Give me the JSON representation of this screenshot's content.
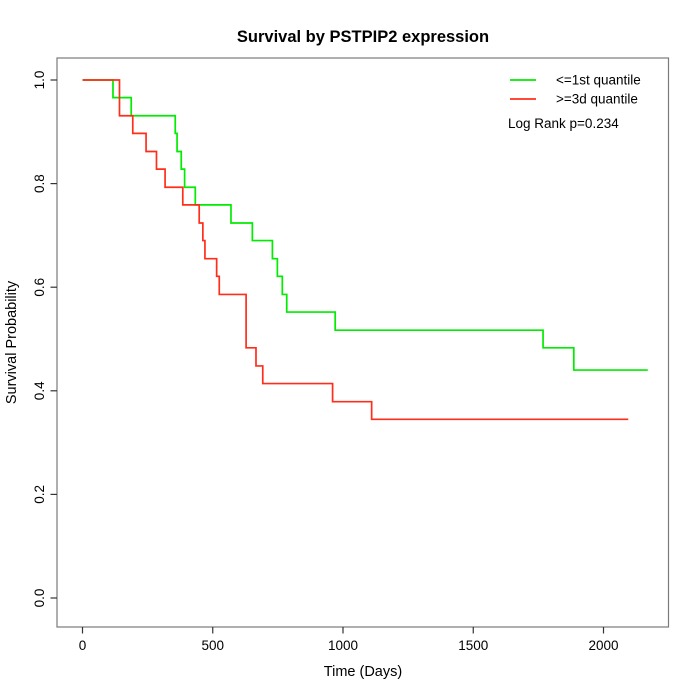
{
  "title": "Survival by PSTPIP2 expression",
  "chart_data": {
    "type": "line",
    "subtype": "kaplan_meier_step",
    "title": "Survival by PSTPIP2 expression",
    "xlabel": "Time (Days)",
    "ylabel": "Survival Probability",
    "xlim": [
      0,
      2260
    ],
    "ylim": [
      0,
      1.0
    ],
    "grid": false,
    "legend_position": "top-right",
    "annotation": "Log Rank p=0.234",
    "x_tick_values": [
      0,
      500,
      1000,
      1500,
      2000
    ],
    "x_tick_labels": [
      "0",
      "500",
      "1000",
      "1500",
      "2000"
    ],
    "y_tick_values": [
      0.0,
      0.2,
      0.4,
      0.6,
      0.8,
      1.0
    ],
    "y_tick_labels": [
      "0.0",
      "0.2",
      "0.4",
      "0.6",
      "0.8",
      "1.0"
    ],
    "series": [
      {
        "name": "<=1st quantile",
        "color": "#00ec00",
        "start_time": 0,
        "start_prob": 1.0,
        "step_times": [
          117,
          187,
          356,
          363,
          379,
          392,
          433,
          570,
          652,
          729,
          748,
          767,
          784,
          970,
          1768,
          1886
        ],
        "step_probs": [
          0.966,
          0.931,
          0.897,
          0.862,
          0.828,
          0.793,
          0.759,
          0.724,
          0.69,
          0.655,
          0.621,
          0.586,
          0.552,
          0.517,
          0.483,
          0.44
        ],
        "end_time": 2170
      },
      {
        "name": ">=3d quantile",
        "color": "#ff2e1a",
        "start_time": 0,
        "start_prob": 1.0,
        "step_times": [
          142,
          193,
          244,
          284,
          317,
          385,
          448,
          462,
          470,
          515,
          525,
          628,
          666,
          692,
          960,
          1110
        ],
        "step_probs": [
          0.931,
          0.897,
          0.862,
          0.828,
          0.793,
          0.759,
          0.724,
          0.69,
          0.655,
          0.621,
          0.586,
          0.483,
          0.448,
          0.414,
          0.379,
          0.345
        ],
        "end_time": 2095
      }
    ]
  }
}
